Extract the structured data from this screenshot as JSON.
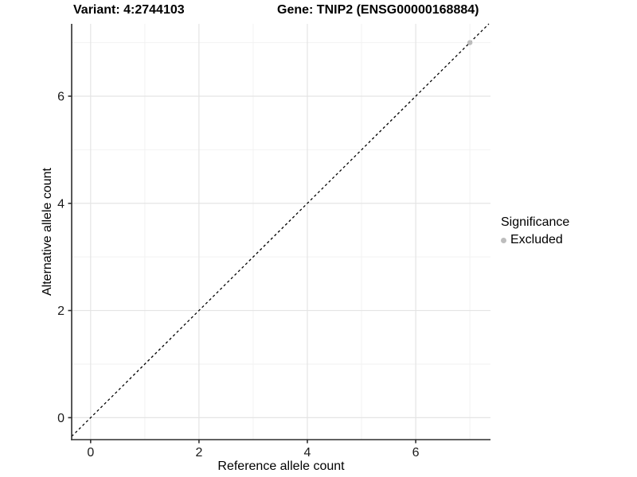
{
  "header": {
    "variant_label": "Variant: 4:2744103",
    "gene_label": "Gene: TNIP2 (ENSG00000168884)"
  },
  "legend": {
    "title": "Significance",
    "items": [
      {
        "label": "Excluded",
        "color": "#bdbdbd"
      }
    ]
  },
  "chart_data": {
    "type": "scatter",
    "title": "Variant: 4:2744103    Gene: TNIP2 (ENSG00000168884)",
    "xlabel": "Reference allele count",
    "ylabel": "Alternative allele count",
    "xlim": [
      -0.35,
      7.38
    ],
    "ylim": [
      -0.41,
      7.35
    ],
    "xticks": [
      0,
      2,
      4,
      6
    ],
    "yticks": [
      0,
      2,
      4,
      6
    ],
    "xticks_minor": [
      1,
      3,
      5,
      7
    ],
    "yticks_minor": [
      1,
      3,
      5,
      7
    ],
    "grid": true,
    "legend_position": "right",
    "series": [
      {
        "name": "Excluded",
        "color": "#bdbdbd",
        "points": [
          [
            7,
            7
          ]
        ]
      }
    ],
    "reference_line": {
      "type": "identity",
      "slope": 1,
      "intercept": 0,
      "style": "dashed",
      "color": "#000000"
    }
  },
  "colors": {
    "background": "#ffffff",
    "grid_major": "#e4e4e4",
    "grid_minor": "#f2f2f2",
    "axis_line": "#2e2e2e",
    "tick_text": "#1a1a1a",
    "title_text": "#000000",
    "point": "#bdbdbd"
  }
}
